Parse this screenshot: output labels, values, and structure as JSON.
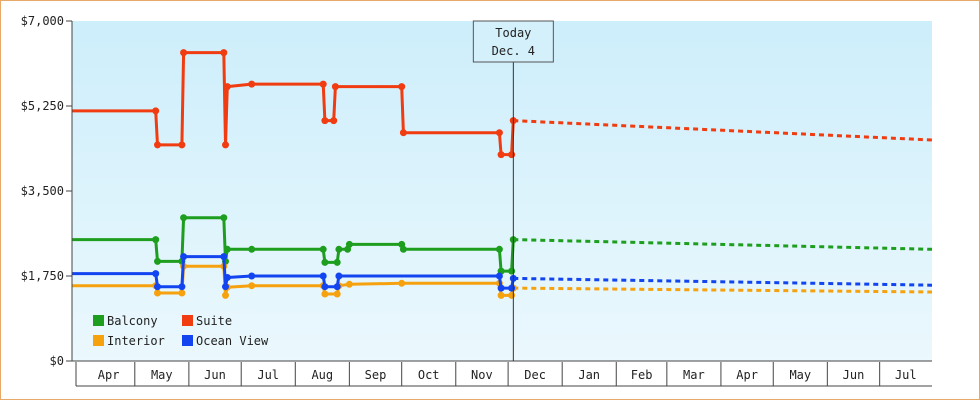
{
  "chart_data": {
    "type": "line",
    "ylim": [
      0,
      7000
    ],
    "y_ticks": [
      "$0",
      "$1,750",
      "$3,500",
      "$5,250",
      "$7,000"
    ],
    "y_tick_values": [
      0,
      1750,
      3500,
      5250,
      7000
    ],
    "x_range": [
      "2023-03-26",
      "2024-07-31"
    ],
    "month_ticks": [
      {
        "label": "Apr",
        "date": "2023-04-01"
      },
      {
        "label": "May",
        "date": "2023-05-01"
      },
      {
        "label": "Jun",
        "date": "2023-06-01"
      },
      {
        "label": "Jul",
        "date": "2023-07-01"
      },
      {
        "label": "Aug",
        "date": "2023-08-01"
      },
      {
        "label": "Sep",
        "date": "2023-09-01"
      },
      {
        "label": "Oct",
        "date": "2023-10-01"
      },
      {
        "label": "Nov",
        "date": "2023-11-01"
      },
      {
        "label": "Dec",
        "date": "2023-12-01"
      },
      {
        "label": "Jan",
        "date": "2024-01-01"
      },
      {
        "label": "Feb",
        "date": "2024-02-01"
      },
      {
        "label": "Mar",
        "date": "2024-03-01"
      },
      {
        "label": "Apr",
        "date": "2024-04-01"
      },
      {
        "label": "May",
        "date": "2024-05-01"
      },
      {
        "label": "Jun",
        "date": "2024-06-01"
      },
      {
        "label": "Jul",
        "date": "2024-07-01"
      }
    ],
    "today": {
      "line1": "Today",
      "line2": "Dec. 4",
      "date": "2023-12-04"
    },
    "background": {
      "top": "#cdeefb",
      "bottom": "#ebf8fd"
    },
    "grid": false,
    "legend_position": "bottom-left",
    "series": [
      {
        "name": "Balcony",
        "color": "#1e9e1e",
        "points": [
          [
            "2023-03-26",
            2500
          ],
          [
            "2023-05-13",
            2500
          ],
          [
            "2023-05-14",
            2050
          ],
          [
            "2023-05-28",
            2050
          ],
          [
            "2023-05-29",
            2950
          ],
          [
            "2023-06-21",
            2950
          ],
          [
            "2023-06-22",
            2050
          ],
          [
            "2023-06-23",
            2300
          ],
          [
            "2023-07-07",
            2300
          ],
          [
            "2023-08-17",
            2300
          ],
          [
            "2023-08-18",
            2030
          ],
          [
            "2023-08-25",
            2030
          ],
          [
            "2023-08-26",
            2300
          ],
          [
            "2023-08-31",
            2300
          ],
          [
            "2023-09-01",
            2400
          ],
          [
            "2023-10-01",
            2400
          ],
          [
            "2023-10-02",
            2300
          ],
          [
            "2023-11-26",
            2300
          ],
          [
            "2023-11-27",
            1850
          ],
          [
            "2023-12-03",
            1850
          ],
          [
            "2023-12-04",
            2500
          ]
        ],
        "forecast": [
          [
            "2023-12-04",
            2500
          ],
          [
            "2024-07-31",
            2300
          ]
        ]
      },
      {
        "name": "Suite",
        "color": "#f03c10",
        "points": [
          [
            "2023-03-26",
            5150
          ],
          [
            "2023-05-13",
            5150
          ],
          [
            "2023-05-14",
            4450
          ],
          [
            "2023-05-28",
            4450
          ],
          [
            "2023-05-29",
            6350
          ],
          [
            "2023-06-21",
            6350
          ],
          [
            "2023-06-22",
            4450
          ],
          [
            "2023-06-23",
            5650
          ],
          [
            "2023-07-07",
            5700
          ],
          [
            "2023-08-17",
            5700
          ],
          [
            "2023-08-18",
            4950
          ],
          [
            "2023-08-23",
            4950
          ],
          [
            "2023-08-24",
            5650
          ],
          [
            "2023-10-01",
            5650
          ],
          [
            "2023-10-02",
            4700
          ],
          [
            "2023-11-26",
            4700
          ],
          [
            "2023-11-27",
            4250
          ],
          [
            "2023-12-03",
            4250
          ],
          [
            "2023-12-04",
            4950
          ]
        ],
        "forecast": [
          [
            "2023-12-04",
            4950
          ],
          [
            "2024-07-31",
            4550
          ]
        ]
      },
      {
        "name": "Interior",
        "color": "#f5a20e",
        "points": [
          [
            "2023-03-26",
            1550
          ],
          [
            "2023-05-13",
            1550
          ],
          [
            "2023-05-14",
            1400
          ],
          [
            "2023-05-28",
            1400
          ],
          [
            "2023-05-29",
            1950
          ],
          [
            "2023-06-21",
            1950
          ],
          [
            "2023-06-22",
            1350
          ],
          [
            "2023-06-23",
            1520
          ],
          [
            "2023-07-07",
            1550
          ],
          [
            "2023-08-17",
            1550
          ],
          [
            "2023-08-18",
            1380
          ],
          [
            "2023-08-25",
            1380
          ],
          [
            "2023-08-26",
            1550
          ],
          [
            "2023-09-01",
            1580
          ],
          [
            "2023-10-01",
            1600
          ],
          [
            "2023-11-26",
            1600
          ],
          [
            "2023-11-27",
            1350
          ],
          [
            "2023-12-03",
            1350
          ],
          [
            "2023-12-04",
            1500
          ]
        ],
        "forecast": [
          [
            "2023-12-04",
            1500
          ],
          [
            "2024-07-31",
            1420
          ]
        ]
      },
      {
        "name": "Ocean View",
        "color": "#1244f0",
        "points": [
          [
            "2023-03-26",
            1800
          ],
          [
            "2023-05-13",
            1800
          ],
          [
            "2023-05-14",
            1530
          ],
          [
            "2023-05-28",
            1530
          ],
          [
            "2023-05-29",
            2150
          ],
          [
            "2023-06-21",
            2150
          ],
          [
            "2023-06-22",
            1530
          ],
          [
            "2023-06-23",
            1720
          ],
          [
            "2023-07-07",
            1750
          ],
          [
            "2023-08-17",
            1750
          ],
          [
            "2023-08-18",
            1530
          ],
          [
            "2023-08-25",
            1530
          ],
          [
            "2023-08-26",
            1750
          ],
          [
            "2023-11-26",
            1750
          ],
          [
            "2023-11-27",
            1500
          ],
          [
            "2023-12-03",
            1500
          ],
          [
            "2023-12-04",
            1700
          ]
        ],
        "forecast": [
          [
            "2023-12-04",
            1700
          ],
          [
            "2024-07-31",
            1560
          ]
        ]
      }
    ]
  }
}
